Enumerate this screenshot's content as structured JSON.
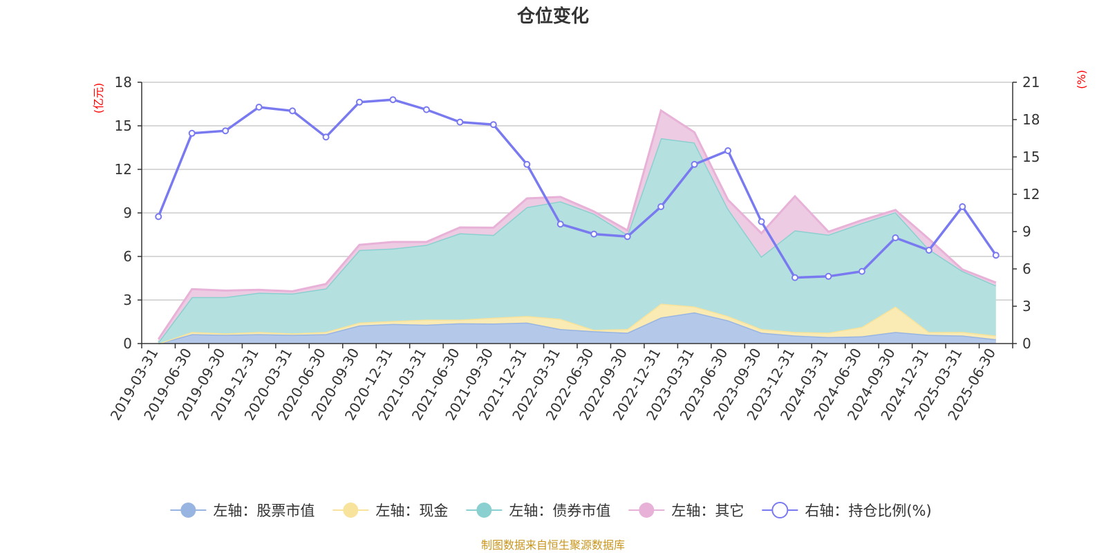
{
  "chart_data": {
    "type": "area",
    "title": "仓位变化",
    "left_axis_unit": "(亿元)",
    "right_axis_unit": "(%)",
    "left_ylim": [
      0,
      18
    ],
    "left_ticks": [
      0,
      3,
      6,
      9,
      12,
      15,
      18
    ],
    "right_ylim": [
      0,
      21
    ],
    "right_ticks": [
      0,
      3,
      6,
      9,
      12,
      15,
      18,
      21
    ],
    "grid": true,
    "stacked": true,
    "legend_position": "bottom-center",
    "categories": [
      "2019-03-31",
      "2019-06-30",
      "2019-09-30",
      "2019-12-31",
      "2020-03-31",
      "2020-06-30",
      "2020-09-30",
      "2020-12-31",
      "2021-03-31",
      "2021-06-30",
      "2021-09-30",
      "2021-12-31",
      "2022-03-31",
      "2022-06-30",
      "2022-09-30",
      "2022-12-31",
      "2023-03-31",
      "2023-06-30",
      "2023-09-30",
      "2023-12-31",
      "2024-03-31",
      "2024-06-30",
      "2024-09-30",
      "2024-12-31",
      "2025-03-31",
      "2025-06-30"
    ],
    "series": [
      {
        "name": "左轴：股票市值",
        "axis": "left",
        "color": "#98b5e1",
        "fill": "#b4c8ea",
        "values": [
          0.0,
          0.65,
          0.6,
          0.65,
          0.6,
          0.65,
          1.25,
          1.35,
          1.3,
          1.4,
          1.38,
          1.45,
          1.0,
          0.85,
          0.75,
          1.8,
          2.15,
          1.6,
          0.75,
          0.55,
          0.45,
          0.5,
          0.8,
          0.6,
          0.55,
          0.3
        ]
      },
      {
        "name": "左轴：现金",
        "axis": "left",
        "color": "#f7e39b",
        "fill": "#faeab4",
        "values": [
          0.0,
          0.15,
          0.1,
          0.15,
          0.1,
          0.15,
          0.2,
          0.2,
          0.35,
          0.25,
          0.4,
          0.45,
          0.7,
          0.1,
          0.25,
          0.95,
          0.4,
          0.3,
          0.25,
          0.25,
          0.3,
          0.65,
          1.75,
          0.2,
          0.25,
          0.25
        ]
      },
      {
        "name": "左轴：债券市值",
        "axis": "left",
        "color": "#8ad0d0",
        "fill": "#b4e0df",
        "values": [
          0.1,
          2.4,
          2.5,
          2.7,
          2.75,
          3.0,
          5.0,
          5.0,
          5.15,
          5.95,
          5.7,
          7.5,
          8.1,
          8.0,
          6.5,
          11.4,
          11.3,
          7.4,
          5.0,
          7.0,
          6.75,
          7.15,
          6.5,
          5.7,
          4.2,
          3.45
        ]
      },
      {
        "name": "左轴：其它",
        "axis": "left",
        "color": "#e8b1d8",
        "fill": "#edcbe2",
        "values": [
          0.2,
          0.55,
          0.45,
          0.2,
          0.15,
          0.3,
          0.35,
          0.45,
          0.2,
          0.4,
          0.5,
          0.6,
          0.3,
          0.15,
          0.3,
          1.9,
          0.7,
          0.6,
          1.6,
          2.35,
          0.2,
          0.2,
          0.15,
          0.7,
          0.1,
          0.2
        ]
      },
      {
        "name": "右轴：持仓比例(%)",
        "axis": "right",
        "color": "#7a7af0",
        "values": [
          10.2,
          16.9,
          17.1,
          19.0,
          18.7,
          16.6,
          19.4,
          19.6,
          18.8,
          17.8,
          17.6,
          14.4,
          9.6,
          8.8,
          8.6,
          11.0,
          14.4,
          15.5,
          9.8,
          5.3,
          5.4,
          5.8,
          8.5,
          7.5,
          11.0,
          7.1
        ]
      }
    ]
  },
  "footer": "制图数据来自恒生聚源数据库"
}
